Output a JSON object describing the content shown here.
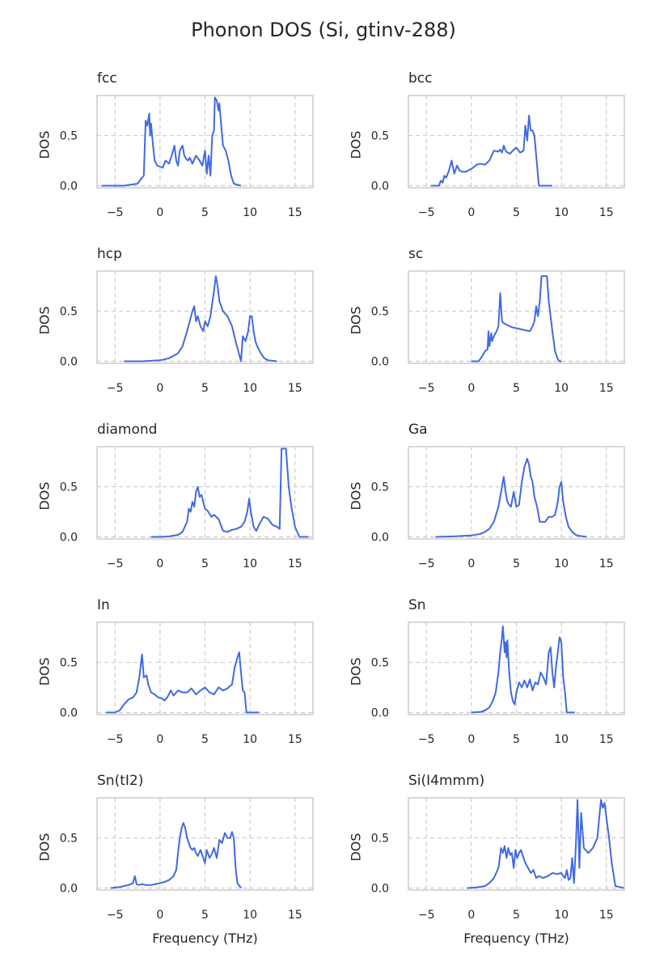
{
  "title": "Phonon DOS (Si, gtinv-288)",
  "colors": {
    "line": "#4169e1",
    "grid": "#cccccc",
    "frame": "#cccccc",
    "text": "#262626"
  },
  "chart_data": {
    "type": "line",
    "shared": {
      "xlabel": "Frequency (THz)",
      "ylabel": "DOS",
      "xlim": [
        -7,
        17
      ],
      "ylim": [
        -0.02,
        0.9
      ],
      "xticks": [
        -5,
        0,
        5,
        10,
        15
      ],
      "yticks": [
        0.0,
        0.5
      ],
      "ytick_labels": [
        "0.0",
        "0.5"
      ],
      "grid": true,
      "grid_style": "dashed"
    },
    "panels": [
      {
        "name": "fcc",
        "show_xlabel": false,
        "x": [
          -6.5,
          -4.0,
          -2.5,
          -2.0,
          -1.8,
          -1.6,
          -1.4,
          -1.2,
          -1.1,
          -1.0,
          -0.8,
          -0.6,
          -0.3,
          0.0,
          0.3,
          0.6,
          1.0,
          1.3,
          1.6,
          1.8,
          2.0,
          2.2,
          2.5,
          2.7,
          2.9,
          3.1,
          3.3,
          3.6,
          4.0,
          4.4,
          4.7,
          5.0,
          5.2,
          5.4,
          5.6,
          5.8,
          6.0,
          6.1,
          6.3,
          6.5,
          6.6,
          6.8,
          7.0,
          7.3,
          7.6,
          7.9,
          8.2,
          9.0
        ],
        "y": [
          0,
          0,
          0.02,
          0.08,
          0.1,
          0.65,
          0.6,
          0.72,
          0.5,
          0.62,
          0.42,
          0.25,
          0.2,
          0.19,
          0.18,
          0.25,
          0.22,
          0.3,
          0.4,
          0.25,
          0.2,
          0.35,
          0.4,
          0.3,
          0.27,
          0.25,
          0.28,
          0.22,
          0.3,
          0.25,
          0.2,
          0.35,
          0.12,
          0.3,
          0.1,
          0.5,
          0.55,
          0.88,
          0.85,
          0.75,
          0.82,
          0.6,
          0.4,
          0.35,
          0.25,
          0.1,
          0.02,
          0
        ]
      },
      {
        "name": "bcc",
        "show_xlabel": false,
        "x": [
          -4.5,
          -3.6,
          -3.4,
          -3.2,
          -3.0,
          -2.8,
          -2.5,
          -2.2,
          -1.9,
          -1.6,
          -1.3,
          -1.0,
          -0.6,
          -0.2,
          0.2,
          0.6,
          1.0,
          1.5,
          2.0,
          2.5,
          3.0,
          3.2,
          3.4,
          3.6,
          3.8,
          4.0,
          4.3,
          4.6,
          5.0,
          5.4,
          5.8,
          6.0,
          6.2,
          6.4,
          6.5,
          6.6,
          6.8,
          7.0,
          7.2,
          7.5,
          9.0
        ],
        "y": [
          0,
          0,
          0.05,
          0.03,
          0.1,
          0.08,
          0.15,
          0.25,
          0.12,
          0.2,
          0.15,
          0.14,
          0.14,
          0.16,
          0.18,
          0.21,
          0.22,
          0.21,
          0.25,
          0.35,
          0.34,
          0.36,
          0.33,
          0.4,
          0.35,
          0.33,
          0.32,
          0.35,
          0.38,
          0.33,
          0.35,
          0.6,
          0.45,
          0.7,
          0.62,
          0.55,
          0.55,
          0.5,
          0.3,
          0,
          0
        ]
      },
      {
        "name": "hcp",
        "show_xlabel": false,
        "x": [
          -4.0,
          -2.0,
          -1.0,
          0.0,
          1.0,
          2.0,
          2.5,
          3.0,
          3.3,
          3.6,
          3.8,
          4.0,
          4.2,
          4.5,
          4.8,
          5.0,
          5.3,
          5.6,
          6.0,
          6.2,
          6.4,
          6.6,
          6.8,
          7.0,
          7.5,
          8.0,
          8.4,
          8.7,
          9.0,
          9.2,
          9.5,
          9.8,
          10.0,
          10.2,
          10.4,
          10.6,
          10.8,
          11.2,
          11.6,
          12.0,
          13.0
        ],
        "y": [
          0,
          0,
          0.005,
          0.01,
          0.03,
          0.08,
          0.15,
          0.3,
          0.4,
          0.5,
          0.55,
          0.4,
          0.45,
          0.35,
          0.3,
          0.4,
          0.35,
          0.45,
          0.7,
          0.85,
          0.75,
          0.6,
          0.55,
          0.5,
          0.45,
          0.35,
          0.2,
          0.1,
          0,
          0.25,
          0.2,
          0.3,
          0.45,
          0.45,
          0.3,
          0.2,
          0.15,
          0.08,
          0.03,
          0.01,
          0
        ]
      },
      {
        "name": "sc",
        "show_xlabel": false,
        "x": [
          0.0,
          0.8,
          1.2,
          1.5,
          1.8,
          1.9,
          2.0,
          2.2,
          2.3,
          2.5,
          2.8,
          3.0,
          3.2,
          3.4,
          3.6,
          4.0,
          4.5,
          5.0,
          5.5,
          6.0,
          6.5,
          6.8,
          7.0,
          7.2,
          7.4,
          7.6,
          7.8,
          8.2,
          8.4,
          8.6,
          9.0,
          9.3,
          9.6,
          9.8,
          10.0
        ],
        "y": [
          0,
          0,
          0.05,
          0.1,
          0.12,
          0.3,
          0.15,
          0.28,
          0.2,
          0.25,
          0.3,
          0.35,
          0.68,
          0.4,
          0.38,
          0.36,
          0.34,
          0.33,
          0.32,
          0.31,
          0.3,
          0.35,
          0.4,
          0.55,
          0.45,
          0.6,
          0.85,
          0.85,
          0.85,
          0.6,
          0.3,
          0.1,
          0.02,
          0,
          0
        ]
      },
      {
        "name": "diamond",
        "show_xlabel": false,
        "x": [
          -1.0,
          0.0,
          1.0,
          2.0,
          2.5,
          3.0,
          3.2,
          3.4,
          3.6,
          3.8,
          4.0,
          4.2,
          4.4,
          4.6,
          4.8,
          5.0,
          5.3,
          5.7,
          6.0,
          6.5,
          7.0,
          7.5,
          8.0,
          8.5,
          9.0,
          9.4,
          9.7,
          9.9,
          10.1,
          10.4,
          10.7,
          11.0,
          11.5,
          12.0,
          12.5,
          13.0,
          13.3,
          13.5,
          13.8,
          14.0,
          14.3,
          14.6,
          15.0,
          15.5,
          16.5
        ],
        "y": [
          0,
          0,
          0.005,
          0.02,
          0.05,
          0.15,
          0.28,
          0.25,
          0.35,
          0.3,
          0.45,
          0.5,
          0.4,
          0.42,
          0.35,
          0.28,
          0.26,
          0.2,
          0.22,
          0.18,
          0.06,
          0.05,
          0.07,
          0.08,
          0.1,
          0.15,
          0.25,
          0.38,
          0.25,
          0.1,
          0.06,
          0.12,
          0.2,
          0.18,
          0.12,
          0.1,
          0.08,
          0.88,
          0.88,
          0.88,
          0.5,
          0.3,
          0.1,
          0,
          0
        ]
      },
      {
        "name": "Ga",
        "show_xlabel": false,
        "x": [
          -4.0,
          -2.0,
          0.0,
          1.0,
          1.5,
          2.0,
          2.5,
          3.0,
          3.3,
          3.6,
          3.8,
          4.0,
          4.2,
          4.4,
          4.7,
          5.0,
          5.3,
          5.6,
          5.9,
          6.2,
          6.4,
          6.6,
          6.8,
          7.0,
          7.3,
          7.6,
          7.9,
          8.2,
          8.6,
          9.0,
          9.3,
          9.6,
          9.8,
          10.0,
          10.2,
          10.5,
          10.8,
          11.2,
          11.6,
          12.0,
          12.8
        ],
        "y": [
          0,
          0.005,
          0.015,
          0.03,
          0.05,
          0.08,
          0.15,
          0.3,
          0.45,
          0.6,
          0.45,
          0.35,
          0.32,
          0.3,
          0.45,
          0.3,
          0.32,
          0.55,
          0.7,
          0.78,
          0.72,
          0.6,
          0.55,
          0.4,
          0.3,
          0.15,
          0.15,
          0.15,
          0.2,
          0.2,
          0.22,
          0.35,
          0.5,
          0.55,
          0.35,
          0.2,
          0.1,
          0.05,
          0.02,
          0.01,
          0
        ]
      },
      {
        "name": "In",
        "show_xlabel": false,
        "x": [
          -6.0,
          -5.0,
          -4.5,
          -4.0,
          -3.5,
          -3.0,
          -2.6,
          -2.3,
          -2.0,
          -1.8,
          -1.5,
          -1.3,
          -1.0,
          -0.6,
          -0.2,
          0.2,
          0.5,
          0.8,
          1.2,
          1.5,
          2.0,
          2.5,
          3.0,
          3.5,
          4.0,
          4.5,
          5.0,
          5.5,
          6.0,
          6.5,
          7.0,
          7.5,
          8.0,
          8.3,
          8.6,
          8.8,
          9.0,
          9.2,
          9.4,
          9.6,
          10.0,
          11.0
        ],
        "y": [
          0,
          0,
          0.02,
          0.08,
          0.13,
          0.15,
          0.2,
          0.35,
          0.58,
          0.35,
          0.37,
          0.28,
          0.2,
          0.18,
          0.15,
          0.14,
          0.12,
          0.15,
          0.22,
          0.17,
          0.22,
          0.2,
          0.2,
          0.24,
          0.18,
          0.22,
          0.25,
          0.2,
          0.18,
          0.25,
          0.22,
          0.24,
          0.28,
          0.45,
          0.55,
          0.6,
          0.4,
          0.22,
          0.2,
          0,
          0,
          0
        ]
      },
      {
        "name": "Sn",
        "show_xlabel": false,
        "x": [
          0.0,
          1.0,
          1.5,
          2.0,
          2.4,
          2.7,
          3.0,
          3.2,
          3.4,
          3.5,
          3.7,
          3.8,
          3.9,
          4.0,
          4.2,
          4.4,
          4.6,
          4.8,
          5.0,
          5.3,
          5.6,
          5.9,
          6.2,
          6.5,
          6.8,
          7.1,
          7.4,
          7.7,
          8.0,
          8.3,
          8.6,
          8.8,
          9.0,
          9.2,
          9.4,
          9.6,
          9.8,
          10.0,
          10.2,
          10.4,
          10.6,
          11.5
        ],
        "y": [
          0,
          0.005,
          0.02,
          0.05,
          0.12,
          0.2,
          0.4,
          0.6,
          0.75,
          0.86,
          0.6,
          0.7,
          0.55,
          0.72,
          0.4,
          0.2,
          0.12,
          0.08,
          0.2,
          0.3,
          0.25,
          0.32,
          0.25,
          0.33,
          0.22,
          0.3,
          0.28,
          0.4,
          0.35,
          0.28,
          0.6,
          0.65,
          0.4,
          0.25,
          0.45,
          0.6,
          0.75,
          0.7,
          0.35,
          0.2,
          0,
          0
        ]
      },
      {
        "name": "Sn(tI2)",
        "show_xlabel": true,
        "x": [
          -5.5,
          -4.5,
          -4.0,
          -3.5,
          -3.0,
          -2.8,
          -2.6,
          -2.4,
          -2.0,
          -1.5,
          -1.0,
          -0.5,
          0.0,
          0.5,
          1.0,
          1.5,
          1.8,
          2.0,
          2.2,
          2.4,
          2.6,
          2.8,
          3.0,
          3.2,
          3.4,
          3.6,
          3.8,
          4.0,
          4.2,
          4.5,
          4.8,
          5.0,
          5.2,
          5.5,
          5.8,
          6.0,
          6.3,
          6.6,
          6.9,
          7.2,
          7.5,
          7.8,
          8.0,
          8.2,
          8.4,
          8.6,
          9.0
        ],
        "y": [
          0,
          0.01,
          0.02,
          0.03,
          0.05,
          0.12,
          0.04,
          0.03,
          0.04,
          0.03,
          0.03,
          0.04,
          0.05,
          0.06,
          0.08,
          0.12,
          0.18,
          0.35,
          0.5,
          0.6,
          0.65,
          0.6,
          0.5,
          0.45,
          0.4,
          0.38,
          0.4,
          0.35,
          0.32,
          0.38,
          0.3,
          0.25,
          0.38,
          0.3,
          0.35,
          0.4,
          0.3,
          0.48,
          0.45,
          0.55,
          0.5,
          0.5,
          0.56,
          0.5,
          0.2,
          0.05,
          0
        ]
      },
      {
        "name": "Si(I4mmm)",
        "show_xlabel": true,
        "x": [
          -0.5,
          0.5,
          1.5,
          2.0,
          2.5,
          3.0,
          3.3,
          3.5,
          3.7,
          3.9,
          4.1,
          4.3,
          4.5,
          4.7,
          4.9,
          5.1,
          5.3,
          5.5,
          5.8,
          6.0,
          6.3,
          6.6,
          6.9,
          7.2,
          7.5,
          8.0,
          8.5,
          9.0,
          9.5,
          10.0,
          10.2,
          10.4,
          10.6,
          10.8,
          11.0,
          11.2,
          11.4,
          11.6,
          11.8,
          12.0,
          12.2,
          12.5,
          13.0,
          13.5,
          14.0,
          14.2,
          14.4,
          14.6,
          14.8,
          15.0,
          15.3,
          15.6,
          16.0,
          17.0
        ],
        "y": [
          0,
          0.005,
          0.02,
          0.05,
          0.1,
          0.2,
          0.4,
          0.35,
          0.42,
          0.3,
          0.4,
          0.33,
          0.35,
          0.2,
          0.38,
          0.3,
          0.35,
          0.38,
          0.3,
          0.25,
          0.2,
          0.15,
          0.18,
          0.1,
          0.12,
          0.1,
          0.12,
          0.15,
          0.14,
          0.15,
          0.12,
          0.1,
          0.18,
          0.08,
          0.1,
          0.3,
          0.05,
          0.4,
          0.88,
          0.2,
          0.75,
          0.4,
          0.35,
          0.4,
          0.5,
          0.7,
          0.88,
          0.8,
          0.85,
          0.7,
          0.5,
          0.25,
          0.02,
          0
        ]
      }
    ]
  }
}
